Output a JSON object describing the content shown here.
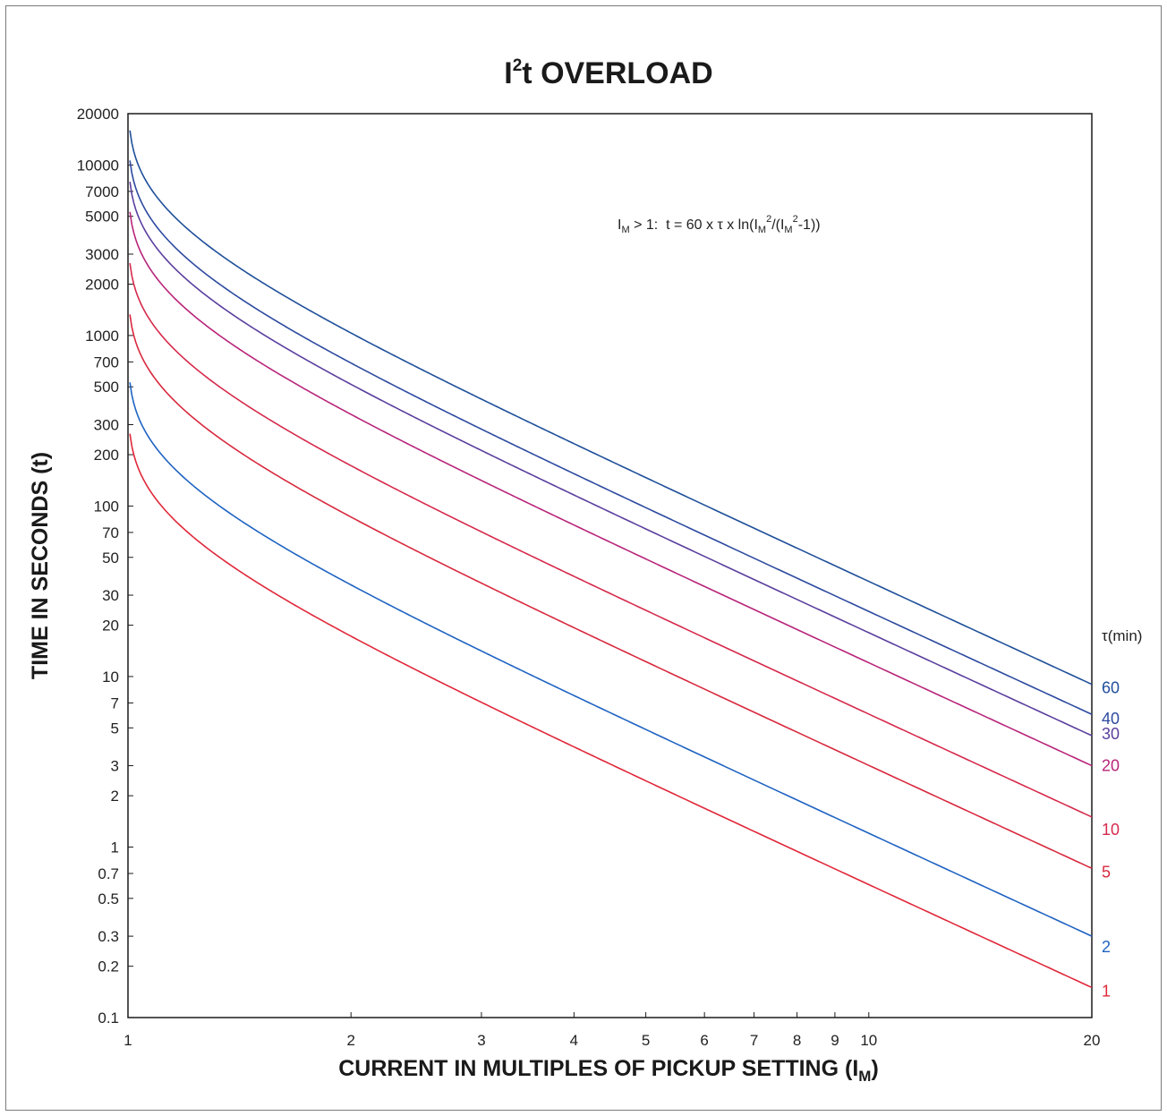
{
  "chart_data": {
    "type": "line",
    "title": "OVERLOAD",
    "title_prefix": "I",
    "title_sup": "2",
    "title_mid": "t",
    "xlabel_main": "CURRENT IN MULTIPLES OF PICKUP SETTING (I",
    "xlabel_sub": "M",
    "xlabel_end": ")",
    "ylabel": "TIME IN SECONDS (t)",
    "formula": {
      "p1": "I",
      "p1_sub": "M",
      "p2": " > 1:  t = 60 x τ x ln(I",
      "p2_sub": "M",
      "p2_sup": "2",
      "p3": "/(I",
      "p3_sub": "M",
      "p3_sup": "2",
      "p4": "-1))"
    },
    "legend_title": "τ(min)",
    "x_scale": "log",
    "y_scale": "log",
    "xlim": [
      1,
      20
    ],
    "ylim": [
      0.1,
      20000
    ],
    "x_ticks": [
      {
        "v": 1,
        "label": "1"
      },
      {
        "v": 2,
        "label": "2"
      },
      {
        "v": 3,
        "label": "3"
      },
      {
        "v": 4,
        "label": "4"
      },
      {
        "v": 5,
        "label": "5"
      },
      {
        "v": 6,
        "label": "6"
      },
      {
        "v": 7,
        "label": "7"
      },
      {
        "v": 8,
        "label": "8"
      },
      {
        "v": 9,
        "label": "9"
      },
      {
        "v": 10,
        "label": "10"
      },
      {
        "v": 20,
        "label": "20"
      }
    ],
    "y_ticks": [
      {
        "v": 0.1,
        "label": "0.1"
      },
      {
        "v": 0.2,
        "label": "0.2"
      },
      {
        "v": 0.3,
        "label": "0.3"
      },
      {
        "v": 0.5,
        "label": "0.5"
      },
      {
        "v": 0.7,
        "label": "0.7"
      },
      {
        "v": 1,
        "label": "1"
      },
      {
        "v": 2,
        "label": "2"
      },
      {
        "v": 3,
        "label": "3"
      },
      {
        "v": 5,
        "label": "5"
      },
      {
        "v": 7,
        "label": "7"
      },
      {
        "v": 10,
        "label": "10"
      },
      {
        "v": 20,
        "label": "20"
      },
      {
        "v": 30,
        "label": "30"
      },
      {
        "v": 50,
        "label": "50"
      },
      {
        "v": 70,
        "label": "70"
      },
      {
        "v": 100,
        "label": "100"
      },
      {
        "v": 200,
        "label": "200"
      },
      {
        "v": 300,
        "label": "300"
      },
      {
        "v": 500,
        "label": "500"
      },
      {
        "v": 700,
        "label": "700"
      },
      {
        "v": 1000,
        "label": "1000"
      },
      {
        "v": 2000,
        "label": "2000"
      },
      {
        "v": 3000,
        "label": "3000"
      },
      {
        "v": 5000,
        "label": "5000"
      },
      {
        "v": 7000,
        "label": "7000"
      },
      {
        "v": 10000,
        "label": "10000"
      },
      {
        "v": 20000,
        "label": "20000"
      }
    ],
    "x": [
      1.01,
      1.05,
      1.1,
      1.2,
      1.5,
      2,
      3,
      5,
      10,
      20
    ],
    "series": [
      {
        "name": "60",
        "color": "#1f4f9a",
        "values": [
          14000,
          8850,
          6750,
          4760,
          2660,
          1040,
          424,
          147,
          36.2,
          9.0
        ]
      },
      {
        "name": "40",
        "color": "#2d4aa0",
        "values": [
          9370,
          5900,
          4500,
          3170,
          1770,
          690,
          283,
          98,
          24.1,
          6.0
        ]
      },
      {
        "name": "30",
        "color": "#5a3f9e",
        "values": [
          7030,
          4420,
          3370,
          2380,
          1330,
          518,
          212,
          73.6,
          18.1,
          4.5
        ]
      },
      {
        "name": "20",
        "color": "#b8257a",
        "values": [
          4690,
          2950,
          2250,
          1590,
          886,
          345,
          141,
          49,
          12.1,
          3.0
        ]
      },
      {
        "name": "10",
        "color": "#d62a4c",
        "values": [
          2340,
          1470,
          1120,
          794,
          443,
          173,
          70.7,
          24.5,
          6.0,
          1.5
        ]
      },
      {
        "name": "5",
        "color": "#d8293e",
        "values": [
          1170,
          737,
          562,
          397,
          221,
          86.3,
          35.3,
          12.3,
          3.0,
          0.75
        ]
      },
      {
        "name": "2",
        "color": "#1f63c2",
        "values": [
          469,
          295,
          225,
          159,
          88.6,
          34.5,
          14.1,
          4.9,
          1.2,
          0.3
        ]
      },
      {
        "name": "1",
        "color": "#e0283a",
        "values": [
          234,
          147,
          112,
          79.4,
          44.3,
          17.3,
          7.07,
          2.45,
          0.6,
          0.15
        ]
      }
    ]
  }
}
